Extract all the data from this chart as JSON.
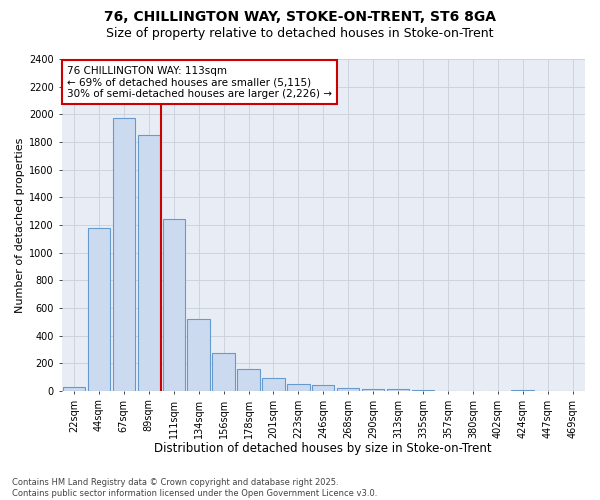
{
  "title_line1": "76, CHILLINGTON WAY, STOKE-ON-TRENT, ST6 8GA",
  "title_line2": "Size of property relative to detached houses in Stoke-on-Trent",
  "xlabel": "Distribution of detached houses by size in Stoke-on-Trent",
  "ylabel": "Number of detached properties",
  "categories": [
    "22sqm",
    "44sqm",
    "67sqm",
    "89sqm",
    "111sqm",
    "134sqm",
    "156sqm",
    "178sqm",
    "201sqm",
    "223sqm",
    "246sqm",
    "268sqm",
    "290sqm",
    "313sqm",
    "335sqm",
    "357sqm",
    "380sqm",
    "402sqm",
    "424sqm",
    "447sqm",
    "469sqm"
  ],
  "values": [
    28,
    1175,
    1975,
    1850,
    1245,
    520,
    270,
    155,
    90,
    50,
    40,
    22,
    12,
    15,
    3,
    2,
    0,
    0,
    4,
    0,
    2
  ],
  "bar_color": "#ccdaf0",
  "bar_edge_color": "#6699cc",
  "vline_color": "#cc0000",
  "vline_index": 4,
  "annotation_text": "76 CHILLINGTON WAY: 113sqm\n← 69% of detached houses are smaller (5,115)\n30% of semi-detached houses are larger (2,226) →",
  "annotation_box_edgecolor": "#cc0000",
  "ylim": [
    0,
    2400
  ],
  "yticks": [
    0,
    200,
    400,
    600,
    800,
    1000,
    1200,
    1400,
    1600,
    1800,
    2000,
    2200,
    2400
  ],
  "grid_color": "#c8d0dc",
  "bg_color": "#e8edf5",
  "footnote": "Contains HM Land Registry data © Crown copyright and database right 2025.\nContains public sector information licensed under the Open Government Licence v3.0.",
  "title_fontsize": 10,
  "subtitle_fontsize": 9,
  "xlabel_fontsize": 8.5,
  "ylabel_fontsize": 8,
  "tick_fontsize": 7,
  "annot_fontsize": 7.5,
  "footnote_fontsize": 6
}
